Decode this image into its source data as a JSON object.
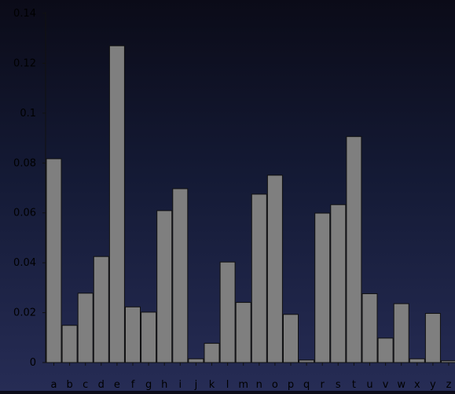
{
  "chart_data": {
    "type": "bar",
    "title": "",
    "xlabel": "",
    "ylabel": "",
    "categories": [
      "a",
      "b",
      "c",
      "d",
      "e",
      "f",
      "g",
      "h",
      "i",
      "j",
      "k",
      "l",
      "m",
      "n",
      "o",
      "p",
      "q",
      "r",
      "s",
      "t",
      "u",
      "v",
      "w",
      "x",
      "y",
      "z"
    ],
    "values": [
      0.0817,
      0.0149,
      0.0278,
      0.0425,
      0.127,
      0.0223,
      0.0202,
      0.0609,
      0.0697,
      0.0015,
      0.0077,
      0.0403,
      0.0241,
      0.0675,
      0.0751,
      0.0193,
      0.001,
      0.0599,
      0.0633,
      0.0906,
      0.0276,
      0.0098,
      0.0236,
      0.0015,
      0.0197,
      0.0007
    ],
    "ylim": [
      0,
      0.14
    ],
    "yticks": [
      "0",
      "0.02",
      "0.04",
      "0.06",
      "0.08",
      "0.1",
      "0.12",
      "0.14"
    ],
    "grid": false,
    "bar_color": "#7f7f7f",
    "bar_edge_color": "#111111",
    "axis_color": "#111111",
    "text_color": "#000000"
  }
}
